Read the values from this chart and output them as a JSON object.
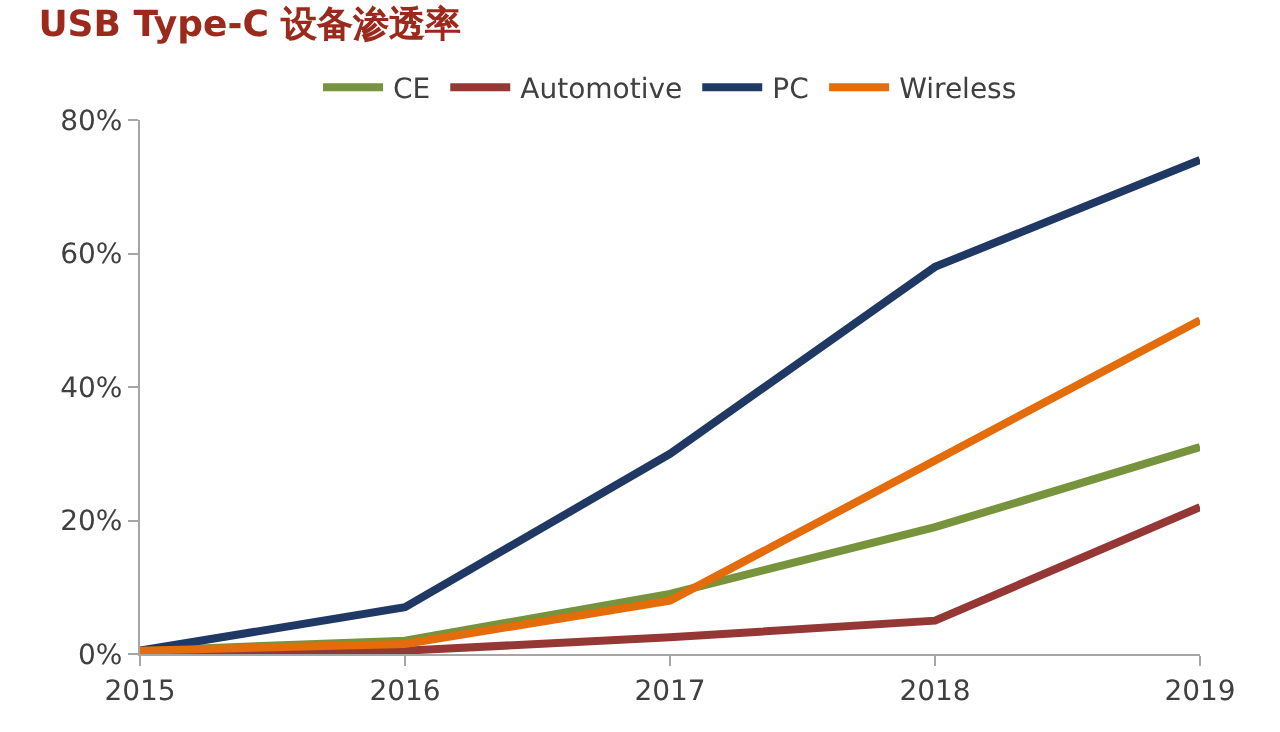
{
  "chart_data": {
    "type": "line",
    "title": "USB Type-C 设备渗透率",
    "x": [
      2015,
      2016,
      2017,
      2018,
      2019
    ],
    "series": [
      {
        "name": "CE",
        "color": "#77933c",
        "values": [
          0.5,
          2,
          9,
          19,
          31
        ]
      },
      {
        "name": "Automotive",
        "color": "#953735",
        "values": [
          0,
          0.5,
          2.5,
          5,
          22
        ]
      },
      {
        "name": "PC",
        "color": "#1f3864",
        "values": [
          0.5,
          7,
          30,
          58,
          74
        ]
      },
      {
        "name": "Wireless",
        "color": "#e46c0a",
        "values": [
          0.5,
          1.5,
          8,
          29,
          50
        ]
      }
    ],
    "xlim": [
      2015,
      2019
    ],
    "xticks": [
      2015,
      2016,
      2017,
      2018,
      2019
    ],
    "ylim": [
      0,
      80
    ],
    "yticks": [
      {
        "value": 0,
        "label": "0%"
      },
      {
        "value": 20,
        "label": "20%"
      },
      {
        "value": 40,
        "label": "40%"
      },
      {
        "value": 60,
        "label": "60%"
      },
      {
        "value": 80,
        "label": "80%"
      }
    ],
    "legend": "top",
    "marker": "none",
    "line_style": "solid"
  }
}
